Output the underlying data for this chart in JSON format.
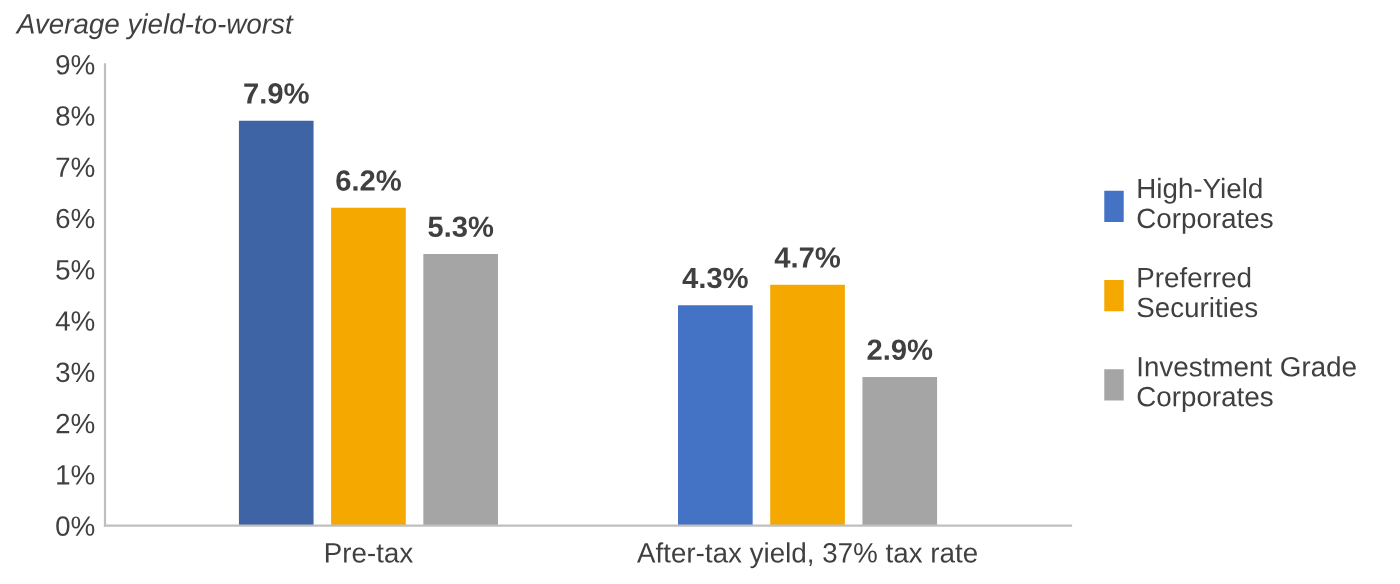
{
  "chart_data": {
    "type": "bar",
    "title": "Average yield-to-worst",
    "categories": [
      "Pre-tax",
      "After-tax yield, 37% tax rate"
    ],
    "series": [
      {
        "name": "High-Yield\nCorporates",
        "color": "#4472c4",
        "colors": [
          "#3f64a6",
          "#4472c4"
        ],
        "values": [
          7.9,
          4.3
        ],
        "value_labels": [
          "7.9%",
          "4.3%"
        ]
      },
      {
        "name": "Preferred\nSecurities",
        "color": "#f5a800",
        "values": [
          6.2,
          4.7
        ],
        "value_labels": [
          "6.2%",
          "4.7%"
        ]
      },
      {
        "name": "Investment Grade\nCorporates",
        "color": "#a5a5a5",
        "values": [
          5.3,
          2.9
        ],
        "value_labels": [
          "5.3%",
          "2.9%"
        ]
      }
    ],
    "ylim": [
      0,
      9
    ],
    "yticks": [
      {
        "value": 0,
        "label": "0%"
      },
      {
        "value": 1,
        "label": "1%"
      },
      {
        "value": 2,
        "label": "2%"
      },
      {
        "value": 3,
        "label": "3%"
      },
      {
        "value": 4,
        "label": "4%"
      },
      {
        "value": 5,
        "label": "5%"
      },
      {
        "value": 6,
        "label": "6%"
      },
      {
        "value": 7,
        "label": "7%"
      },
      {
        "value": 8,
        "label": "8%"
      },
      {
        "value": 9,
        "label": "9%"
      }
    ],
    "grid": false,
    "legend": "right"
  }
}
